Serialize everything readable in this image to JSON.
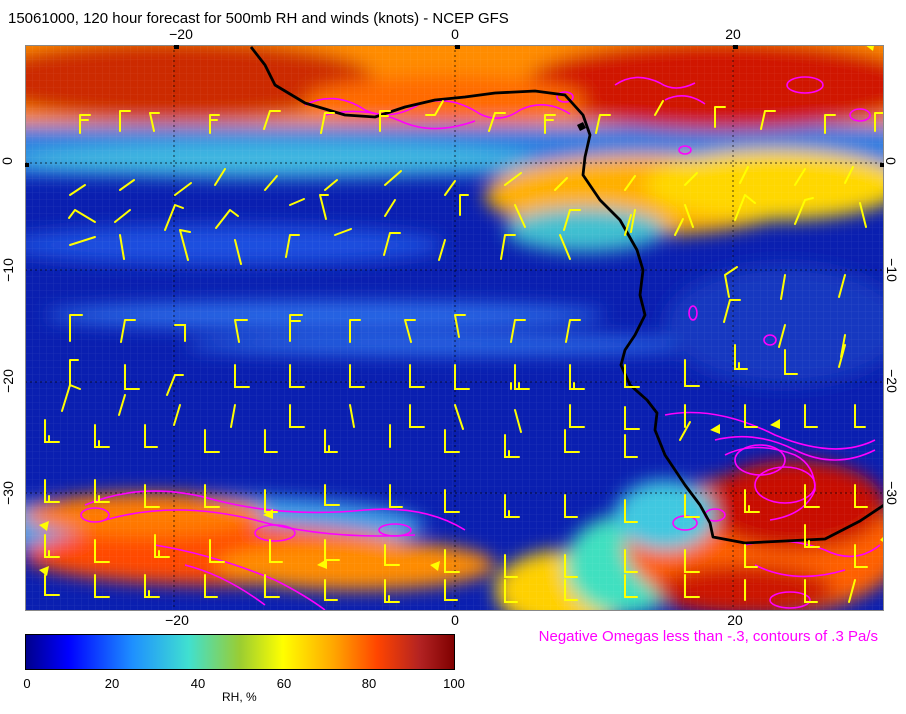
{
  "title": "15061000, 120 hour forecast for 500mb RH and winds (knots) - NCEP GFS",
  "map": {
    "x_ticks": [
      "−20",
      "0",
      "20"
    ],
    "y_ticks": [
      "0",
      "−10",
      "−20",
      "−30"
    ],
    "colors": {
      "wind_barb": "#ffff00",
      "omega_contour": "#ff00ff",
      "coastline": "#000000"
    }
  },
  "omega_note": "Negative Omegas less than -.3, contours of .3 Pa/s",
  "colorbar": {
    "ticks": [
      "0",
      "20",
      "40",
      "60",
      "80",
      "100"
    ],
    "label": "RH, %",
    "colors": [
      "#00008b",
      "#0000ff",
      "#1e90ff",
      "#40e0d0",
      "#9acd32",
      "#ffff00",
      "#ffa500",
      "#ff4500",
      "#b22222",
      "#7f0000"
    ]
  }
}
